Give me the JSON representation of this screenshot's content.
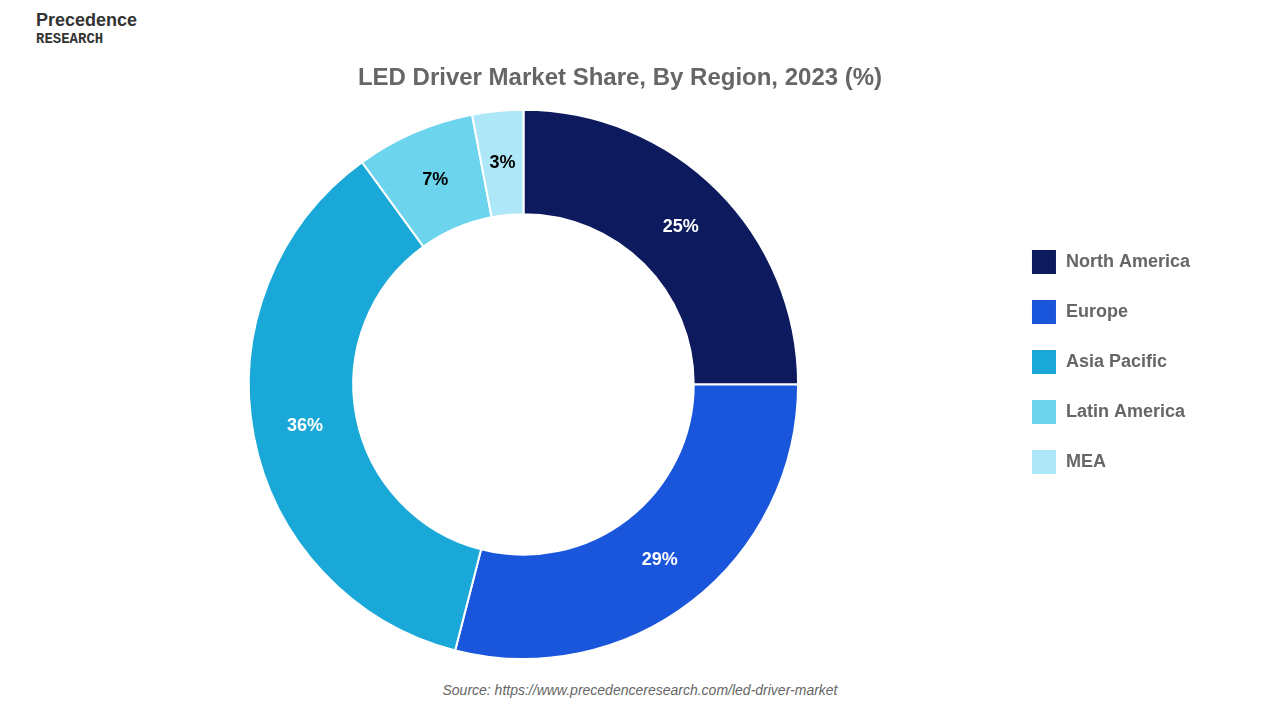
{
  "chart_data": {
    "type": "doughnut",
    "title": "LED Driver Market Share, By Region, 2023 (%)",
    "categories": [
      "North America",
      "Europe",
      "Asia Pacific",
      "Latin America",
      "MEA"
    ],
    "values": [
      25,
      29,
      36,
      7,
      3
    ],
    "value_labels": [
      "25%",
      "29%",
      "36%",
      "7%",
      "3%"
    ],
    "colors": [
      "#0d1b5e",
      "#1a56db",
      "#1aa8d8",
      "#6dd4ee",
      "#aee8f8"
    ],
    "data_labels": true,
    "legend": "right",
    "annotations": [
      "Precedence",
      "RESEARCH",
      "Source: https://www.precedenceresearch.com/led-driver-market"
    ]
  }
}
